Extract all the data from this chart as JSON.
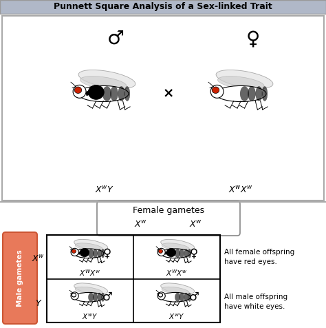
{
  "title": "Punnett Square Analysis of a Sex-linked Trait",
  "title_bg": "#b0b8c8",
  "male_gametes_box_color": "#e8795a",
  "male_gametes_text": "Male gametes",
  "female_gametes_label": "Female gametes",
  "male_symbol": "♂",
  "female_symbol": "♀",
  "cross_symbol": "×",
  "all_female_text": "All female offspring\nhave red eyes.",
  "all_male_text": "All male offspring\nhave white eyes.",
  "fig_width": 4.74,
  "fig_height": 4.76,
  "dpi": 100
}
